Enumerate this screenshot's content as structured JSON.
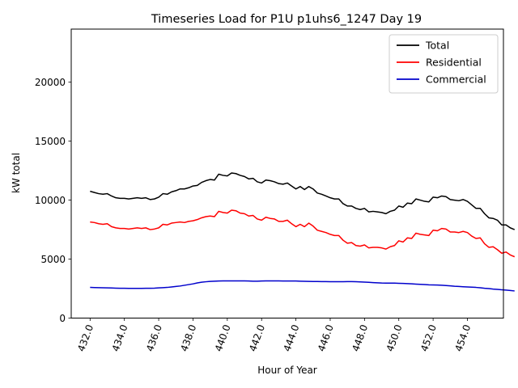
{
  "chart_data": {
    "type": "line",
    "title": "Timeseries Load for P1U p1uhs6_1247  Day 19",
    "xlabel": "Hour of Year",
    "ylabel": "kW total",
    "xlim": [
      430.9,
      456.1
    ],
    "ylim": [
      0,
      24500
    ],
    "x_ticks": [
      432,
      434,
      436,
      438,
      440,
      442,
      444,
      446,
      448,
      450,
      452,
      454
    ],
    "x_tick_labels": [
      "432.0",
      "434.0",
      "436.0",
      "438.0",
      "440.0",
      "442.0",
      "444.0",
      "446.0",
      "448.0",
      "450.0",
      "452.0",
      "454.0"
    ],
    "y_ticks": [
      0,
      5000,
      10000,
      15000,
      20000
    ],
    "y_tick_labels": [
      "0",
      "5000",
      "10000",
      "15000",
      "20000"
    ],
    "legend_position": "top-right",
    "grid": false,
    "x_start": 432,
    "x_step": 0.25,
    "series": [
      {
        "name": "Total",
        "color": "#000000",
        "values": [
          10750,
          10650,
          10550,
          10500,
          10550,
          10350,
          10200,
          10150,
          10150,
          10100,
          10150,
          10200,
          10150,
          10200,
          10050,
          10100,
          10250,
          10550,
          10500,
          10700,
          10800,
          10950,
          10950,
          11050,
          11200,
          11250,
          11500,
          11650,
          11750,
          11700,
          12200,
          12100,
          12050,
          12300,
          12250,
          12100,
          12000,
          11800,
          11850,
          11550,
          11450,
          11700,
          11650,
          11550,
          11400,
          11350,
          11450,
          11200,
          10950,
          11150,
          10900,
          11150,
          10950,
          10600,
          10500,
          10350,
          10200,
          10100,
          10100,
          9700,
          9500,
          9500,
          9300,
          9200,
          9300,
          9000,
          9050,
          9000,
          8950,
          8850,
          9050,
          9150,
          9500,
          9400,
          9750,
          9700,
          10100,
          10000,
          9900,
          9850,
          10250,
          10200,
          10350,
          10300,
          10050,
          10000,
          9950,
          10050,
          9900,
          9600,
          9300,
          9300,
          8850,
          8500,
          8450,
          8300,
          7900,
          7900,
          7650,
          7500
        ]
      },
      {
        "name": "Residential",
        "color": "#ff0000",
        "values": [
          8150,
          8100,
          8000,
          7950,
          8000,
          7750,
          7650,
          7600,
          7600,
          7550,
          7600,
          7650,
          7600,
          7650,
          7500,
          7550,
          7650,
          7950,
          7900,
          8050,
          8100,
          8150,
          8100,
          8200,
          8250,
          8350,
          8500,
          8600,
          8650,
          8600,
          9050,
          8950,
          8900,
          9150,
          9100,
          8900,
          8850,
          8650,
          8700,
          8400,
          8300,
          8550,
          8450,
          8400,
          8200,
          8200,
          8300,
          8000,
          7750,
          7950,
          7750,
          8050,
          7800,
          7450,
          7350,
          7250,
          7100,
          7000,
          7000,
          6600,
          6350,
          6400,
          6150,
          6100,
          6200,
          5950,
          6000,
          6000,
          5950,
          5850,
          6050,
          6150,
          6550,
          6450,
          6800,
          6750,
          7200,
          7100,
          7050,
          7000,
          7450,
          7400,
          7600,
          7550,
          7300,
          7300,
          7250,
          7350,
          7250,
          6950,
          6750,
          6800,
          6300,
          6000,
          6050,
          5800,
          5500,
          5600,
          5350,
          5200
        ]
      },
      {
        "name": "Commercial",
        "color": "#0000cc",
        "values": [
          2600,
          2590,
          2580,
          2570,
          2560,
          2550,
          2540,
          2530,
          2530,
          2520,
          2520,
          2520,
          2520,
          2530,
          2530,
          2540,
          2560,
          2580,
          2600,
          2640,
          2680,
          2720,
          2780,
          2840,
          2900,
          2980,
          3040,
          3080,
          3110,
          3130,
          3140,
          3150,
          3150,
          3150,
          3150,
          3150,
          3150,
          3140,
          3130,
          3130,
          3140,
          3150,
          3150,
          3150,
          3150,
          3140,
          3140,
          3140,
          3140,
          3130,
          3120,
          3110,
          3100,
          3100,
          3090,
          3090,
          3080,
          3080,
          3080,
          3080,
          3090,
          3090,
          3080,
          3070,
          3050,
          3030,
          3010,
          2990,
          2970,
          2960,
          2960,
          2960,
          2950,
          2940,
          2920,
          2900,
          2880,
          2860,
          2840,
          2820,
          2810,
          2800,
          2780,
          2760,
          2730,
          2700,
          2680,
          2660,
          2640,
          2620,
          2600,
          2570,
          2530,
          2500,
          2460,
          2430,
          2400,
          2370,
          2340,
          2300
        ]
      }
    ]
  }
}
